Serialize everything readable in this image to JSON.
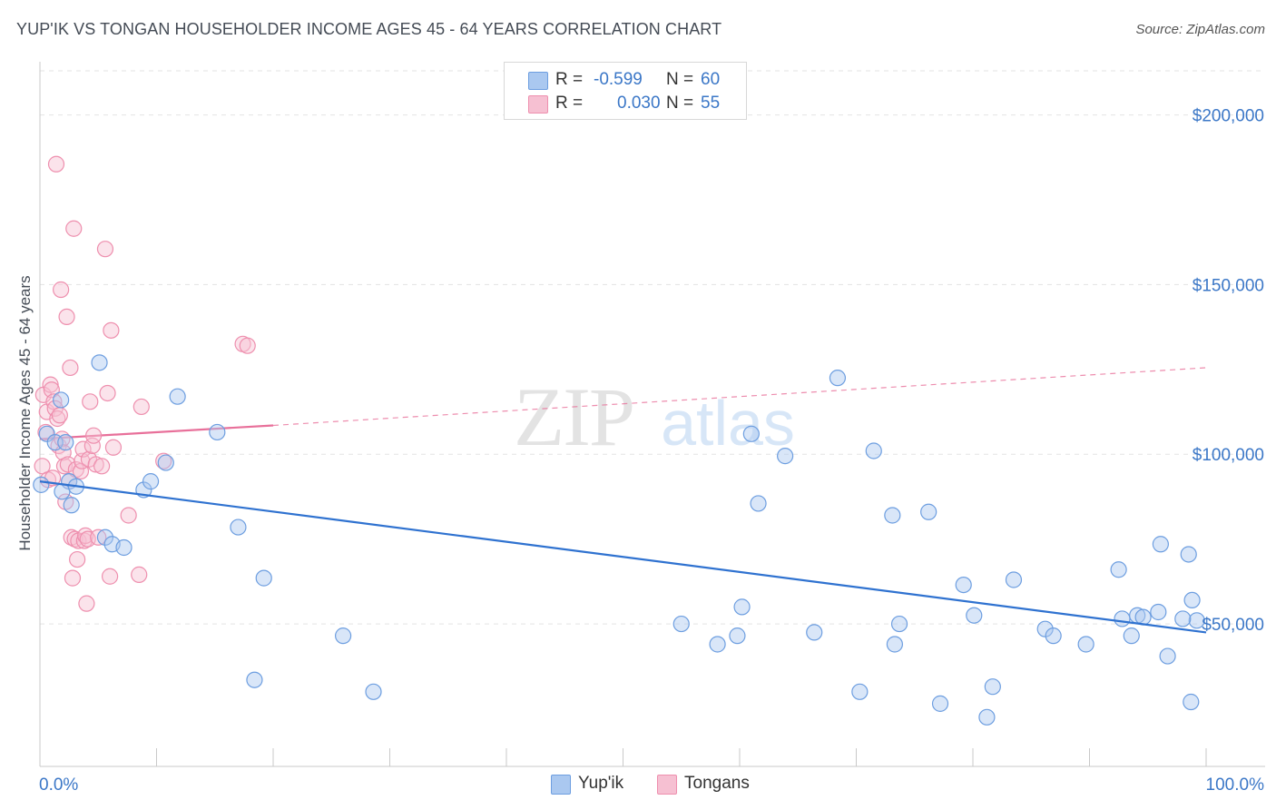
{
  "header": {
    "title": "YUP'IK VS TONGAN HOUSEHOLDER INCOME AGES 45 - 64 YEARS CORRELATION CHART",
    "source": "Source: ZipAtlas.com"
  },
  "watermark": {
    "zip": "ZIP",
    "atlas": "atlas"
  },
  "legend": {
    "rows": [
      {
        "r_label": "R =",
        "r_value": "-0.599",
        "n_label": "N =",
        "n_value": "60"
      },
      {
        "r_label": "R =",
        "r_value": "0.030",
        "n_label": "N =",
        "n_value": "55"
      }
    ]
  },
  "bottom_legend": {
    "items": [
      "Yup'ik",
      "Tongans"
    ]
  },
  "colors": {
    "blue_fill": "#aac8f0",
    "blue_stroke": "#6d9ee0",
    "blue_line": "#2f72d0",
    "pink_fill": "#f6c0d2",
    "pink_stroke": "#ee8fae",
    "pink_line": "#e8709a",
    "tick_label": "#3b77c7",
    "grid": "#e3e3e3"
  },
  "chart_data": {
    "type": "scatter",
    "xlabel": "",
    "ylabel": "Householder Income Ages 45 - 64 years",
    "xlim": [
      0,
      100
    ],
    "ylim": [
      8000,
      213000
    ],
    "x_tick_labels": [
      "0.0%",
      "100.0%"
    ],
    "y_ticks": [
      {
        "value": 50000,
        "label": "$50,000"
      },
      {
        "value": 100000,
        "label": "$100,000"
      },
      {
        "value": 150000,
        "label": "$150,000"
      },
      {
        "value": 200000,
        "label": "$200,000"
      }
    ],
    "grid": true,
    "legend_position": "top-center",
    "series": [
      {
        "name": "Yup'ik",
        "trend": {
          "x": [
            0,
            100
          ],
          "y": [
            92000,
            47500
          ],
          "dashed_extension": false
        },
        "points": [
          [
            0.1,
            91000
          ],
          [
            0.6,
            106000
          ],
          [
            1.3,
            103500
          ],
          [
            1.8,
            116000
          ],
          [
            2.2,
            103500
          ],
          [
            2.5,
            92000
          ],
          [
            2.7,
            85000
          ],
          [
            1.9,
            89000
          ],
          [
            3.1,
            90500
          ],
          [
            5.1,
            127000
          ],
          [
            5.6,
            75500
          ],
          [
            6.2,
            73500
          ],
          [
            7.2,
            72500
          ],
          [
            8.9,
            89500
          ],
          [
            9.5,
            92000
          ],
          [
            10.8,
            97500
          ],
          [
            11.8,
            117000
          ],
          [
            15.2,
            106500
          ],
          [
            17.0,
            78500
          ],
          [
            18.4,
            33500
          ],
          [
            19.2,
            63500
          ],
          [
            26.0,
            46500
          ],
          [
            28.6,
            30000
          ],
          [
            55.0,
            50000
          ],
          [
            58.1,
            44000
          ],
          [
            59.8,
            46500
          ],
          [
            60.2,
            55000
          ],
          [
            61.0,
            106000
          ],
          [
            61.6,
            85500
          ],
          [
            63.9,
            99500
          ],
          [
            66.4,
            47500
          ],
          [
            68.4,
            122500
          ],
          [
            70.3,
            30000
          ],
          [
            71.5,
            101000
          ],
          [
            73.1,
            82000
          ],
          [
            73.3,
            44000
          ],
          [
            73.7,
            50000
          ],
          [
            76.2,
            83000
          ],
          [
            77.2,
            26500
          ],
          [
            79.2,
            61500
          ],
          [
            80.1,
            52500
          ],
          [
            81.2,
            22500
          ],
          [
            81.7,
            31500
          ],
          [
            83.5,
            63000
          ],
          [
            86.2,
            48500
          ],
          [
            86.9,
            46500
          ],
          [
            89.7,
            44000
          ],
          [
            92.5,
            66000
          ],
          [
            92.8,
            51500
          ],
          [
            93.6,
            46500
          ],
          [
            94.1,
            52500
          ],
          [
            94.6,
            52000
          ],
          [
            95.9,
            53500
          ],
          [
            96.1,
            73500
          ],
          [
            96.7,
            40500
          ],
          [
            98.5,
            70500
          ],
          [
            98.7,
            27000
          ],
          [
            98.8,
            57000
          ],
          [
            99.2,
            51000
          ],
          [
            98.0,
            51500
          ]
        ]
      },
      {
        "name": "Tongans",
        "trend": {
          "x": [
            0,
            20
          ],
          "y": [
            104500,
            108500
          ],
          "dashed_extension": true,
          "dashed_to": [
            100,
            125500
          ]
        },
        "points": [
          [
            0.2,
            96500
          ],
          [
            0.3,
            117500
          ],
          [
            0.5,
            106500
          ],
          [
            0.6,
            112500
          ],
          [
            0.7,
            92500
          ],
          [
            0.9,
            120500
          ],
          [
            1.0,
            119000
          ],
          [
            1.1,
            93000
          ],
          [
            1.2,
            115500
          ],
          [
            1.3,
            113500
          ],
          [
            1.4,
            185500
          ],
          [
            1.5,
            110500
          ],
          [
            1.6,
            102500
          ],
          [
            1.7,
            111500
          ],
          [
            1.8,
            148500
          ],
          [
            1.9,
            104500
          ],
          [
            2.0,
            100500
          ],
          [
            2.1,
            96500
          ],
          [
            2.2,
            86000
          ],
          [
            2.3,
            140500
          ],
          [
            2.4,
            97000
          ],
          [
            2.5,
            92000
          ],
          [
            2.6,
            125500
          ],
          [
            2.7,
            75500
          ],
          [
            2.8,
            63500
          ],
          [
            2.9,
            166500
          ],
          [
            3.0,
            75000
          ],
          [
            3.1,
            95500
          ],
          [
            3.2,
            69000
          ],
          [
            3.3,
            74500
          ],
          [
            3.5,
            95000
          ],
          [
            3.6,
            98000
          ],
          [
            3.7,
            101500
          ],
          [
            3.8,
            74500
          ],
          [
            3.9,
            76000
          ],
          [
            4.0,
            56000
          ],
          [
            4.1,
            75000
          ],
          [
            4.2,
            98500
          ],
          [
            4.3,
            115500
          ],
          [
            4.5,
            102500
          ],
          [
            4.6,
            105500
          ],
          [
            4.8,
            97000
          ],
          [
            5.0,
            75500
          ],
          [
            5.3,
            96500
          ],
          [
            5.6,
            160500
          ],
          [
            5.8,
            118000
          ],
          [
            6.0,
            64000
          ],
          [
            6.1,
            136500
          ],
          [
            6.3,
            102000
          ],
          [
            7.6,
            82000
          ],
          [
            8.5,
            64500
          ],
          [
            8.7,
            114000
          ],
          [
            10.6,
            98000
          ],
          [
            17.4,
            132500
          ],
          [
            17.8,
            132000
          ]
        ]
      }
    ]
  }
}
